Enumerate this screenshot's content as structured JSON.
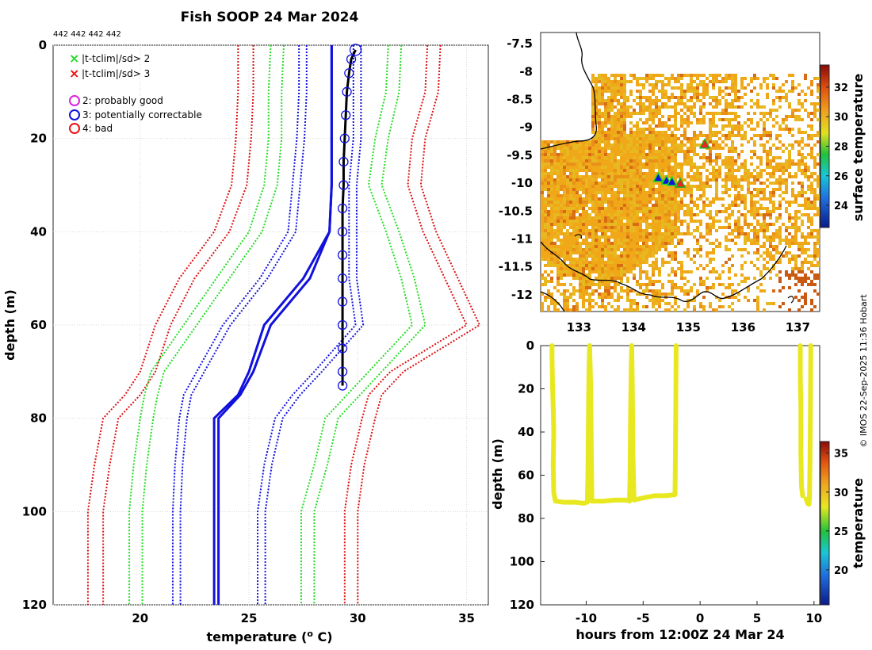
{
  "figure": {
    "title": "Fish SOOP 24 Mar 2024",
    "id_list": "442 442 442 442",
    "credit": "© IMOS 22-Sep-2025 11:36 Hobart"
  },
  "legend": {
    "items": [
      {
        "symbol": "x",
        "color": "#22dd22",
        "label": "|t-tclim|/sd> 2"
      },
      {
        "symbol": "x",
        "color": "#ee1111",
        "label": "|t-tclim|/sd> 3"
      },
      {
        "symbol": "o",
        "color": "#dd22dd",
        "label": "2: probably good"
      },
      {
        "symbol": "o",
        "color": "#1111dd",
        "label": "3: potentially correctable"
      },
      {
        "symbol": "o",
        "color": "#ee1111",
        "label": "4: bad"
      }
    ]
  },
  "colors": {
    "climatology_sd1": "#1111dd",
    "climatology_sd2": "#22dd22",
    "climatology_sd3": "#dd1111",
    "profile": "#000000",
    "qc_circle": "#1111dd",
    "land_line": "#000000",
    "mean_line": "#1111dd"
  },
  "chart_data": [
    {
      "name": "profile",
      "type": "line",
      "title": "",
      "xlabel": "temperature (o C)",
      "xlabel_parts": {
        "pre": "temperature (",
        "sup": "o",
        "post": " C)"
      },
      "ylabel": "depth (m)",
      "xlim": [
        16,
        36
      ],
      "ylim": [
        0,
        120
      ],
      "y_reversed": true,
      "xticks": [
        20,
        25,
        30,
        35
      ],
      "yticks": [
        0,
        20,
        40,
        60,
        80,
        100,
        120
      ],
      "grid": true,
      "depth_levels": [
        0,
        10,
        20,
        30,
        40,
        50,
        60,
        70,
        75,
        80,
        90,
        100,
        110,
        120
      ],
      "climatology": {
        "mean": [
          28.8,
          28.8,
          28.8,
          28.8,
          28.7,
          27.5,
          25.7,
          25.0,
          24.5,
          23.4,
          23.4,
          23.4,
          23.4,
          23.4
        ],
        "mean_b": [
          28.8,
          28.8,
          28.8,
          28.8,
          28.7,
          27.8,
          26.0,
          25.2,
          24.6,
          23.6,
          23.6,
          23.6,
          23.6,
          23.6
        ],
        "minus1sd": [
          27.3,
          27.3,
          27.2,
          27.0,
          26.8,
          25.5,
          23.8,
          22.6,
          22.0,
          21.8,
          21.6,
          21.5,
          21.5,
          21.5
        ],
        "plus1sd": [
          29.8,
          29.8,
          29.8,
          29.6,
          29.6,
          29.6,
          29.9,
          28.0,
          27.0,
          26.2,
          25.7,
          25.4,
          25.4,
          25.4
        ],
        "minus2sd": [
          26.0,
          25.9,
          25.9,
          25.7,
          25.0,
          23.5,
          22.0,
          20.5,
          20.2,
          20.0,
          19.7,
          19.5,
          19.5,
          19.5
        ],
        "plus2sd": [
          31.4,
          31.3,
          30.8,
          30.5,
          31.3,
          32.0,
          32.5,
          30.5,
          29.5,
          28.5,
          28.0,
          27.4,
          27.4,
          27.4
        ],
        "minus3sd": [
          24.5,
          24.5,
          24.4,
          24.2,
          23.4,
          21.8,
          20.7,
          20.0,
          19.3,
          18.3,
          17.9,
          17.6,
          17.6,
          17.6
        ],
        "plus3sd": [
          33.2,
          33.1,
          32.5,
          32.3,
          33.0,
          34.0,
          35.0,
          31.5,
          30.5,
          30.2,
          29.7,
          29.4,
          29.4,
          29.4
        ]
      },
      "profile_points": [
        {
          "depth": 1,
          "temp": 29.9
        },
        {
          "depth": 3,
          "temp": 29.7
        },
        {
          "depth": 6,
          "temp": 29.6
        },
        {
          "depth": 10,
          "temp": 29.5
        },
        {
          "depth": 15,
          "temp": 29.45
        },
        {
          "depth": 20,
          "temp": 29.4
        },
        {
          "depth": 25,
          "temp": 29.35
        },
        {
          "depth": 30,
          "temp": 29.35
        },
        {
          "depth": 35,
          "temp": 29.3
        },
        {
          "depth": 40,
          "temp": 29.3
        },
        {
          "depth": 45,
          "temp": 29.3
        },
        {
          "depth": 50,
          "temp": 29.3
        },
        {
          "depth": 55,
          "temp": 29.3
        },
        {
          "depth": 60,
          "temp": 29.3
        },
        {
          "depth": 65,
          "temp": 29.3
        },
        {
          "depth": 70,
          "temp": 29.3
        },
        {
          "depth": 73,
          "temp": 29.3
        }
      ]
    },
    {
      "name": "map",
      "type": "heatmap",
      "xlim": [
        132.3,
        137.4
      ],
      "ylim": [
        -12.3,
        -7.3
      ],
      "xticks": [
        133,
        134,
        135,
        136,
        137
      ],
      "yticks": [
        -7.5,
        -8,
        -8.5,
        -9,
        -9.5,
        -10,
        -10.5,
        -11,
        -11.5,
        -12
      ],
      "ytick_labels": [
        "-7.5",
        "-8",
        "-8.5",
        "-9",
        "-9.5",
        "-10",
        "-10.5",
        "-11",
        "-11.5",
        "-12"
      ],
      "colorbar": {
        "label": "surface temperature",
        "range": [
          22.5,
          33.5
        ],
        "ticks": [
          24,
          26,
          28,
          30,
          32
        ]
      },
      "markers": [
        {
          "type": "triangle-red",
          "lon": 135.3,
          "lat": -9.3
        },
        {
          "type": "triangle-red",
          "lon": 134.85,
          "lat": -10.0
        },
        {
          "type": "triangle-green",
          "lon": 134.45,
          "lat": -9.9
        },
        {
          "type": "triangle-green",
          "lon": 134.6,
          "lat": -9.95
        },
        {
          "type": "triangle-green",
          "lon": 134.7,
          "lat": -9.97
        }
      ]
    },
    {
      "name": "timeseries",
      "type": "scatter",
      "xlabel": "hours from 12:00Z 24 Mar 24",
      "ylabel": "depth (m)",
      "xlim": [
        -14,
        10.5
      ],
      "ylim": [
        0,
        120
      ],
      "y_reversed": true,
      "xticks": [
        -10,
        -5,
        0,
        5,
        10
      ],
      "yticks": [
        0,
        20,
        40,
        60,
        80,
        100,
        120
      ],
      "color_value": 29.5,
      "colorbar": {
        "label": "temperature",
        "range": [
          15.5,
          36.5
        ],
        "ticks": [
          20,
          25,
          30,
          35
        ]
      },
      "segments": [
        {
          "t": [
            -13.0,
            -13.0,
            -12.95,
            -12.9,
            -12.85,
            -12.9,
            -12.85,
            -12.7,
            -12.0,
            -11.0,
            -10.2,
            -9.9,
            -9.85,
            -9.8,
            -9.75,
            -9.7,
            -9.6,
            -9.55,
            -9.5
          ],
          "d": [
            0,
            6,
            20,
            28,
            40,
            55,
            68,
            72,
            72.5,
            72.5,
            73,
            72.5,
            60,
            30,
            10,
            0,
            20,
            50,
            72
          ]
        },
        {
          "t": [
            -9.5,
            -8.5,
            -7.5,
            -6.5,
            -6.2,
            -6.15,
            -6.1,
            -6.05,
            -6.0,
            -5.95,
            -5.9,
            -5.8
          ],
          "d": [
            72,
            72,
            71.5,
            71.5,
            72,
            60,
            30,
            10,
            0,
            20,
            50,
            71.5
          ]
        },
        {
          "t": [
            -5.8,
            -5.0,
            -4.0,
            -3.0,
            -2.2,
            -2.15,
            -2.1
          ],
          "d": [
            71.5,
            70.5,
            69.5,
            69.5,
            69,
            40,
            0
          ]
        },
        {
          "t": [
            8.8,
            8.8,
            8.85,
            8.85,
            8.9,
            9.0
          ],
          "d": [
            0,
            15,
            28,
            50,
            65,
            69.5
          ]
        },
        {
          "t": [
            9.3,
            9.45,
            9.55,
            9.6,
            9.65,
            9.7,
            9.72
          ],
          "d": [
            71,
            73,
            73.5,
            71,
            55,
            20,
            0
          ]
        }
      ]
    }
  ]
}
